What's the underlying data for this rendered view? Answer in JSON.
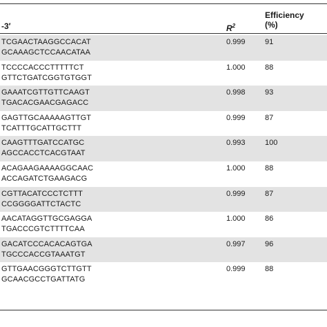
{
  "table": {
    "headers": {
      "sequence": "-3′",
      "r2": "R",
      "r2_sup": "2",
      "efficiency_line1": "Efficiency",
      "efficiency_line2": "(%)"
    },
    "rows": [
      {
        "fwd": "TCGAACTAAGGCCACAT",
        "rev": "GCAAAGCTCCAACATAA",
        "r2": "0.999",
        "eff": "91"
      },
      {
        "fwd": "TCCCCACCCTTTTTCT",
        "rev": "GTTCTGATCGGTGTGGT",
        "r2": "1.000",
        "eff": "88"
      },
      {
        "fwd": "GAAATCGTTGTTCAAGT",
        "rev": "TGACACGAACGAGACC",
        "r2": "0.998",
        "eff": "93"
      },
      {
        "fwd": "GAGTTGCAAAAAGTTGT",
        "rev": "TCATTTGCATTGCTTT",
        "r2": "0.999",
        "eff": "87"
      },
      {
        "fwd": "CAAGTTTGATCCATGC",
        "rev": "AGCCACCTCACGTAAT",
        "r2": "0.993",
        "eff": "100"
      },
      {
        "fwd": "ACAGAAGAAAAGGCAAC",
        "rev": "ACCAGATCTGAAGACG",
        "r2": "1.000",
        "eff": "88"
      },
      {
        "fwd": "CGTTACATCCCTCTTT",
        "rev": "CCGGGGATTCTACTC",
        "r2": "0.999",
        "eff": "87"
      },
      {
        "fwd": "AACATAGGTTGCGAGGA",
        "rev": "TGACCCGTCTTTTCAA",
        "r2": "1.000",
        "eff": "86"
      },
      {
        "fwd": "GACATCCCACACAGTGA",
        "rev": "TGCCCACCGTAAATGT",
        "r2": "0.997",
        "eff": "96"
      },
      {
        "fwd": "GTTGAACGGGTCTTGTT",
        "rev": "GCAACGCCTGATTATG",
        "r2": "0.999",
        "eff": "88"
      }
    ]
  }
}
